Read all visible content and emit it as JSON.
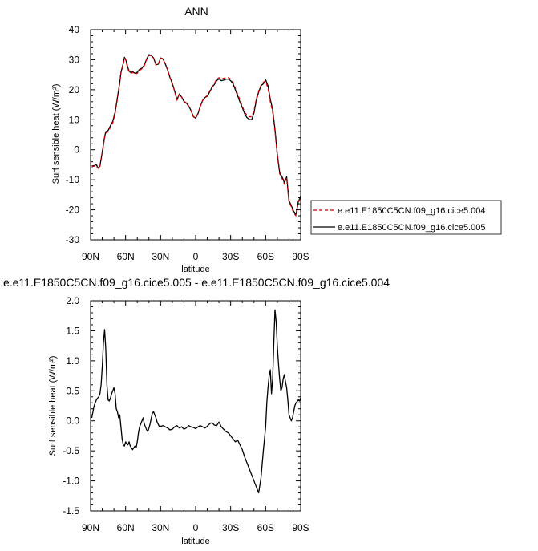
{
  "chart_data": [
    {
      "type": "line",
      "title": "ANN",
      "xlabel": "latitude",
      "ylabel": "Surf sensible heat (W/m²)",
      "xlim": [
        90,
        -90
      ],
      "ylim": [
        -30,
        40
      ],
      "xticks": [
        90,
        60,
        30,
        0,
        -30,
        -60,
        -90
      ],
      "xtick_labels": [
        "90N",
        "60N",
        "30N",
        "0",
        "30S",
        "60S",
        "90S"
      ],
      "yticks": [
        -30,
        -20,
        -10,
        0,
        10,
        20,
        30,
        40
      ],
      "ytick_labels": [
        "-30",
        "-20",
        "-10",
        "0",
        "10",
        "20",
        "30",
        "40"
      ],
      "legend_position": "right",
      "grid": false,
      "series": [
        {
          "name": "e.e11.E1850C5CN.f09_g16.cice5.004",
          "color": "#cc0000",
          "dash": "dashed",
          "x": [
            89,
            87,
            85,
            84,
            83,
            82,
            80,
            78,
            77,
            75,
            73,
            71,
            69,
            67,
            65,
            64,
            62,
            61,
            60,
            58,
            57,
            56,
            55,
            54,
            52,
            50,
            48,
            46,
            44,
            42,
            40,
            38,
            36,
            34,
            32,
            30,
            28,
            26,
            24,
            22,
            20,
            18,
            16,
            14,
            12,
            10,
            8,
            6,
            4,
            2,
            0,
            -2,
            -4,
            -6,
            -8,
            -10,
            -12,
            -14,
            -16,
            -18,
            -20,
            -22,
            -24,
            -26,
            -28,
            -30,
            -32,
            -34,
            -36,
            -38,
            -40,
            -42,
            -44,
            -46,
            -48,
            -50,
            -52,
            -54,
            -56,
            -58,
            -60,
            -62,
            -64,
            -66,
            -68,
            -70,
            -72,
            -74,
            -75,
            -76,
            -77,
            -78,
            -80,
            -82,
            -84,
            -86,
            -88,
            -90
          ],
          "values": [
            -5.5,
            -5.5,
            -5.3,
            -6.0,
            -6.3,
            -5.8,
            -1.0,
            4.0,
            5.5,
            6.0,
            7.5,
            9.0,
            12.0,
            17.0,
            22.0,
            25.5,
            28.5,
            30.5,
            30.0,
            27.0,
            26.0,
            25.5,
            25.5,
            25.8,
            25.2,
            25.5,
            26.5,
            27.0,
            28.0,
            30.0,
            31.5,
            31.2,
            30.5,
            28.2,
            28.5,
            30.5,
            30.2,
            28.5,
            26.5,
            24.0,
            22.0,
            19.5,
            16.5,
            18.5,
            17.5,
            16.0,
            15.5,
            14.5,
            13.0,
            11.0,
            10.5,
            12.0,
            14.5,
            16.5,
            17.5,
            18.0,
            19.5,
            21.0,
            22.0,
            23.5,
            24.0,
            23.5,
            23.8,
            24.0,
            24.0,
            23.5,
            22.5,
            20.5,
            18.5,
            16.5,
            14.5,
            12.5,
            11.5,
            11.0,
            11.0,
            13.0,
            17.0,
            19.5,
            21.5,
            22.5,
            22.8,
            20.5,
            16.0,
            12.5,
            6.0,
            -2.0,
            -8.0,
            -9.5,
            -10.5,
            -11.5,
            -10.5,
            -9.5,
            -17.5,
            -19.0,
            -21.0,
            -22.0,
            -17.5,
            -16.0
          ]
        },
        {
          "name": "e.e11.E1850C5CN.f09_g16.cice5.005",
          "color": "#000000",
          "dash": "solid",
          "x": [
            89,
            87,
            85,
            84,
            83,
            82,
            80,
            78,
            77,
            75,
            73,
            71,
            69,
            67,
            65,
            64,
            62,
            61,
            60,
            58,
            57,
            56,
            55,
            54,
            52,
            50,
            48,
            46,
            44,
            42,
            40,
            38,
            36,
            34,
            32,
            30,
            28,
            26,
            24,
            22,
            20,
            18,
            16,
            14,
            12,
            10,
            8,
            6,
            4,
            2,
            0,
            -2,
            -4,
            -6,
            -8,
            -10,
            -12,
            -14,
            -16,
            -18,
            -20,
            -22,
            -24,
            -26,
            -28,
            -30,
            -32,
            -34,
            -36,
            -38,
            -40,
            -42,
            -44,
            -46,
            -48,
            -50,
            -52,
            -54,
            -56,
            -58,
            -60,
            -62,
            -64,
            -66,
            -68,
            -70,
            -72,
            -74,
            -75,
            -76,
            -77,
            -78,
            -80,
            -82,
            -84,
            -86,
            -88,
            -90
          ],
          "values": [
            -5.4,
            -5.3,
            -5.0,
            -5.8,
            -6.0,
            -5.4,
            -0.7,
            4.3,
            6.0,
            6.4,
            8.0,
            9.5,
            12.5,
            17.5,
            22.4,
            25.8,
            28.8,
            30.8,
            30.2,
            27.4,
            26.3,
            25.8,
            25.8,
            26.0,
            25.5,
            25.8,
            26.8,
            27.2,
            28.2,
            30.2,
            31.7,
            31.4,
            30.6,
            28.3,
            28.5,
            30.6,
            30.3,
            28.6,
            26.6,
            24.1,
            22.1,
            19.6,
            16.6,
            18.6,
            17.6,
            16.1,
            15.6,
            14.6,
            13.1,
            11.1,
            10.5,
            12.0,
            14.5,
            16.4,
            17.4,
            17.8,
            19.2,
            20.8,
            21.7,
            23.0,
            23.6,
            23.0,
            23.2,
            23.5,
            23.5,
            23.0,
            22.0,
            20.0,
            18.0,
            15.9,
            14.0,
            12.0,
            10.7,
            10.1,
            10.0,
            12.3,
            16.5,
            19.2,
            21.3,
            22.0,
            23.3,
            21.3,
            16.8,
            13.3,
            6.8,
            -1.5,
            -7.5,
            -9.0,
            -9.8,
            -11.0,
            -10.0,
            -9.0,
            -17.0,
            -18.6,
            -20.5,
            -21.5,
            -17.2,
            -15.7
          ]
        }
      ]
    },
    {
      "type": "line",
      "title": "e.e11.E1850C5CN.f09_g16.cice5.005 - e.e11.E1850C5CN.f09_g16.cice5.004",
      "xlabel": "latitude",
      "ylabel": "Surf sensible heat (W/m²)",
      "xlim": [
        90,
        -90
      ],
      "ylim": [
        -1.5,
        2.0
      ],
      "xticks": [
        90,
        60,
        30,
        0,
        -30,
        -60,
        -90
      ],
      "xtick_labels": [
        "90N",
        "60N",
        "30N",
        "0",
        "30S",
        "60S",
        "90S"
      ],
      "yticks": [
        -1.5,
        -1.0,
        -0.5,
        0.0,
        0.5,
        1.0,
        1.5,
        2.0
      ],
      "ytick_labels": [
        "-1.5",
        "-1.0",
        "-0.5",
        "0.0",
        "0.5",
        "1.0",
        "1.5",
        "2.0"
      ],
      "grid": false,
      "series": [
        {
          "color": "#000000",
          "x": [
            89,
            88,
            87,
            86,
            85,
            84,
            83,
            82,
            81,
            80,
            79,
            78,
            77,
            76,
            75,
            74,
            73,
            72,
            71,
            70,
            69,
            68,
            67,
            66,
            65,
            64,
            63,
            62,
            61,
            60,
            59,
            58,
            57,
            56,
            55,
            54,
            53,
            52,
            51,
            50,
            49,
            48,
            47,
            46,
            45,
            44,
            43,
            42,
            41,
            40,
            39,
            38,
            37,
            36,
            35,
            34,
            33,
            32,
            31,
            30,
            28,
            26,
            24,
            22,
            20,
            18,
            16,
            14,
            12,
            10,
            8,
            6,
            4,
            2,
            0,
            -2,
            -4,
            -6,
            -8,
            -10,
            -12,
            -14,
            -16,
            -18,
            -20,
            -22,
            -24,
            -26,
            -28,
            -30,
            -32,
            -34,
            -36,
            -38,
            -40,
            -42,
            -44,
            -46,
            -48,
            -50,
            -52,
            -54,
            -56,
            -58,
            -60,
            -61,
            -62,
            -63,
            -64,
            -65,
            -66,
            -67,
            -68,
            -69,
            -70,
            -71,
            -72,
            -73,
            -74,
            -75,
            -76,
            -77,
            -78,
            -79,
            -80,
            -81,
            -82,
            -83,
            -84,
            -85,
            -86,
            -87,
            -88,
            -89,
            -90
          ],
          "values": [
            0.05,
            0.15,
            0.25,
            0.3,
            0.35,
            0.38,
            0.4,
            0.45,
            0.6,
            0.9,
            1.3,
            1.52,
            1.2,
            0.6,
            0.35,
            0.33,
            0.38,
            0.45,
            0.5,
            0.55,
            0.45,
            0.2,
            0.15,
            0.05,
            0.1,
            -0.1,
            -0.3,
            -0.4,
            -0.42,
            -0.35,
            -0.38,
            -0.4,
            -0.35,
            -0.42,
            -0.45,
            -0.48,
            -0.45,
            -0.42,
            -0.45,
            -0.35,
            -0.2,
            -0.1,
            -0.05,
            0.0,
            0.05,
            -0.05,
            -0.1,
            -0.15,
            -0.18,
            -0.12,
            -0.05,
            0.05,
            0.13,
            0.15,
            0.1,
            0.05,
            -0.02,
            -0.06,
            -0.1,
            -0.09,
            -0.08,
            -0.1,
            -0.12,
            -0.15,
            -0.14,
            -0.1,
            -0.08,
            -0.12,
            -0.1,
            -0.14,
            -0.12,
            -0.08,
            -0.1,
            -0.11,
            -0.13,
            -0.1,
            -0.08,
            -0.1,
            -0.12,
            -0.09,
            -0.05,
            -0.03,
            -0.07,
            -0.08,
            -0.02,
            -0.1,
            -0.14,
            -0.18,
            -0.2,
            -0.25,
            -0.3,
            -0.35,
            -0.32,
            -0.4,
            -0.48,
            -0.6,
            -0.7,
            -0.8,
            -0.9,
            -1.0,
            -1.1,
            -1.2,
            -0.95,
            -0.5,
            -0.1,
            0.3,
            0.55,
            0.75,
            0.85,
            0.45,
            0.7,
            1.3,
            1.85,
            1.65,
            1.25,
            0.95,
            0.7,
            0.5,
            0.55,
            0.7,
            0.77,
            0.65,
            0.55,
            0.35,
            0.1,
            0.05,
            0.0,
            0.05,
            0.15,
            0.25,
            0.3,
            0.32,
            0.35,
            0.33,
            0.38
          ]
        }
      ]
    }
  ]
}
